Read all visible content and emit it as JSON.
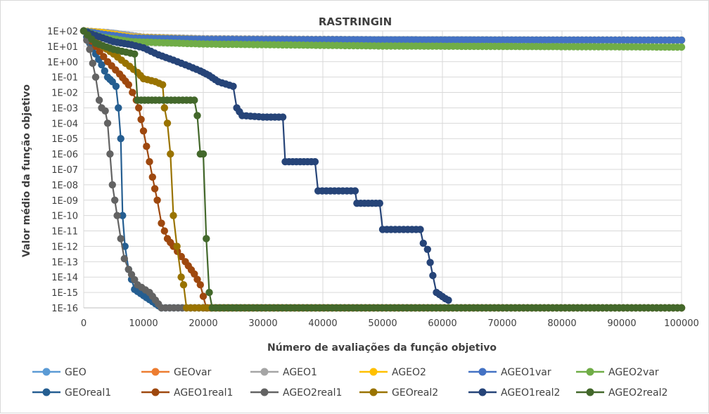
{
  "chart_data": {
    "type": "line",
    "title": "RASTRINGIN",
    "xlabel": "Número de avaliações da função objetivo",
    "ylabel": "Valor médio da função objetivo",
    "xlim": [
      0,
      100000
    ],
    "ylim_exponents": [
      -16,
      2
    ],
    "y_scale": "log",
    "grid": true,
    "legend_position": "bottom",
    "x_ticks": [
      "0",
      "10000",
      "20000",
      "30000",
      "40000",
      "50000",
      "60000",
      "70000",
      "80000",
      "90000",
      "100000"
    ],
    "y_ticks": [
      "1E+02",
      "1E+01",
      "1E+00",
      "1E-01",
      "1E-02",
      "1E-03",
      "1E-04",
      "1E-05",
      "1E-06",
      "1E-07",
      "1E-08",
      "1E-09",
      "1E-10",
      "1E-11",
      "1E-12",
      "1E-13",
      "1E-14",
      "1E-15",
      "1E-16"
    ],
    "series": [
      {
        "name": "GEO",
        "color": "#5B9BD5",
        "points": [
          [
            0,
            2
          ],
          [
            5000,
            1.85
          ],
          [
            10000,
            1.6
          ],
          [
            20000,
            1.48
          ],
          [
            40000,
            1.43
          ],
          [
            60000,
            1.42
          ],
          [
            100000,
            1.4
          ]
        ]
      },
      {
        "name": "GEOvar",
        "color": "#ED7D31",
        "points": [
          [
            0,
            2
          ],
          [
            4000,
            1.8
          ],
          [
            10000,
            1.55
          ],
          [
            20000,
            1.45
          ],
          [
            50000,
            1.42
          ],
          [
            100000,
            1.4
          ]
        ]
      },
      {
        "name": "AGEO1",
        "color": "#A5A5A5",
        "points": [
          [
            0,
            2
          ],
          [
            4000,
            1.9
          ],
          [
            10000,
            1.6
          ],
          [
            20000,
            1.5
          ],
          [
            50000,
            1.43
          ],
          [
            100000,
            1.4
          ]
        ]
      },
      {
        "name": "AGEO2",
        "color": "#FFC000",
        "points": [
          [
            0,
            2
          ],
          [
            3000,
            1.9
          ],
          [
            8000,
            1.6
          ],
          [
            20000,
            1.45
          ],
          [
            50000,
            1.42
          ],
          [
            100000,
            1.4
          ]
        ]
      },
      {
        "name": "AGEO1var",
        "color": "#4472C4",
        "points": [
          [
            0,
            2
          ],
          [
            3000,
            1.8
          ],
          [
            8000,
            1.55
          ],
          [
            20000,
            1.45
          ],
          [
            50000,
            1.42
          ],
          [
            100000,
            1.4
          ]
        ]
      },
      {
        "name": "AGEO2var",
        "color": "#70AD47",
        "points": [
          [
            0,
            2
          ],
          [
            3000,
            1.6
          ],
          [
            8000,
            1.3
          ],
          [
            20000,
            1.15
          ],
          [
            50000,
            1.02
          ],
          [
            100000,
            0.95
          ]
        ]
      },
      {
        "name": "GEOreal1",
        "color": "#255E91",
        "points": [
          [
            0,
            2
          ],
          [
            1000,
            1.2
          ],
          [
            2000,
            0.5
          ],
          [
            3000,
            -0.2
          ],
          [
            4000,
            -1
          ],
          [
            4800,
            -1.3
          ],
          [
            5400,
            -1.6
          ],
          [
            5800,
            -3
          ],
          [
            6200,
            -5
          ],
          [
            6500,
            -10
          ],
          [
            6900,
            -12
          ],
          [
            7500,
            -13.5
          ],
          [
            8500,
            -14.8
          ],
          [
            10000,
            -15.2
          ],
          [
            11500,
            -15.6
          ],
          [
            13000,
            -16
          ],
          [
            100000,
            -16
          ]
        ]
      },
      {
        "name": "AGEO1real1",
        "color": "#9E480E",
        "points": [
          [
            0,
            2
          ],
          [
            2000,
            1
          ],
          [
            4000,
            0
          ],
          [
            6000,
            -0.8
          ],
          [
            7500,
            -1.5
          ],
          [
            8800,
            -2.5
          ],
          [
            9200,
            -3
          ],
          [
            10000,
            -4.5
          ],
          [
            11000,
            -6.5
          ],
          [
            11500,
            -7.5
          ],
          [
            12300,
            -9
          ],
          [
            13000,
            -10.5
          ],
          [
            14000,
            -11.5
          ],
          [
            15000,
            -12
          ],
          [
            17000,
            -13
          ],
          [
            18500,
            -13.8
          ],
          [
            19500,
            -14.5
          ],
          [
            20500,
            -16
          ],
          [
            100000,
            -16
          ]
        ]
      },
      {
        "name": "AGEO2real1",
        "color": "#636363",
        "points": [
          [
            0,
            2
          ],
          [
            1000,
            0.8
          ],
          [
            2000,
            -1
          ],
          [
            2600,
            -2.5
          ],
          [
            3000,
            -3
          ],
          [
            3600,
            -3.2
          ],
          [
            4000,
            -4
          ],
          [
            4400,
            -6
          ],
          [
            4800,
            -8
          ],
          [
            5200,
            -9
          ],
          [
            5600,
            -10
          ],
          [
            6200,
            -11.5
          ],
          [
            6800,
            -12.8
          ],
          [
            7500,
            -13.5
          ],
          [
            9000,
            -14.5
          ],
          [
            11000,
            -15
          ],
          [
            12000,
            -15.5
          ],
          [
            13000,
            -16
          ],
          [
            100000,
            -16
          ]
        ]
      },
      {
        "name": "GEOreal2",
        "color": "#997300",
        "points": [
          [
            0,
            2
          ],
          [
            2000,
            1.3
          ],
          [
            5000,
            0.5
          ],
          [
            7000,
            -0.1
          ],
          [
            9000,
            -0.7
          ],
          [
            10000,
            -1.1
          ],
          [
            12000,
            -1.3
          ],
          [
            13200,
            -1.5
          ],
          [
            13500,
            -3
          ],
          [
            14000,
            -4
          ],
          [
            14500,
            -6
          ],
          [
            15000,
            -10
          ],
          [
            15600,
            -12
          ],
          [
            16300,
            -14
          ],
          [
            16700,
            -14.5
          ],
          [
            17200,
            -16
          ],
          [
            100000,
            -16
          ]
        ]
      },
      {
        "name": "AGEO1real2",
        "color": "#264478",
        "points": [
          [
            0,
            2
          ],
          [
            2000,
            1.7
          ],
          [
            5000,
            1.3
          ],
          [
            8000,
            1.1
          ],
          [
            10000,
            0.9
          ],
          [
            12500,
            0.45
          ],
          [
            15000,
            0.1
          ],
          [
            17000,
            -0.2
          ],
          [
            19500,
            -0.6
          ],
          [
            21000,
            -0.9
          ],
          [
            22500,
            -1.3
          ],
          [
            25000,
            -1.6
          ],
          [
            25600,
            -3
          ],
          [
            26500,
            -3.5
          ],
          [
            30000,
            -3.6
          ],
          [
            33300,
            -3.6
          ],
          [
            33700,
            -6.5
          ],
          [
            38700,
            -6.5
          ],
          [
            39200,
            -8.4
          ],
          [
            45400,
            -8.4
          ],
          [
            45700,
            -9.2
          ],
          [
            49500,
            -9.2
          ],
          [
            50000,
            -10.9
          ],
          [
            56300,
            -10.9
          ],
          [
            56800,
            -11.8
          ],
          [
            57500,
            -12.2
          ],
          [
            58400,
            -13.9
          ],
          [
            59000,
            -15
          ],
          [
            60500,
            -15.4
          ],
          [
            61000,
            -15.5
          ]
        ]
      },
      {
        "name": "AGEO2real2",
        "color": "#43682B",
        "points": [
          [
            0,
            2
          ],
          [
            2000,
            1.2
          ],
          [
            5000,
            0.8
          ],
          [
            8500,
            0.5
          ],
          [
            9000,
            -2.5
          ],
          [
            12000,
            -2.5
          ],
          [
            18500,
            -2.5
          ],
          [
            19000,
            -3.5
          ],
          [
            19500,
            -6
          ],
          [
            20000,
            -6
          ],
          [
            20500,
            -11.5
          ],
          [
            21000,
            -15
          ],
          [
            21500,
            -16
          ],
          [
            100000,
            -16
          ]
        ]
      }
    ]
  }
}
